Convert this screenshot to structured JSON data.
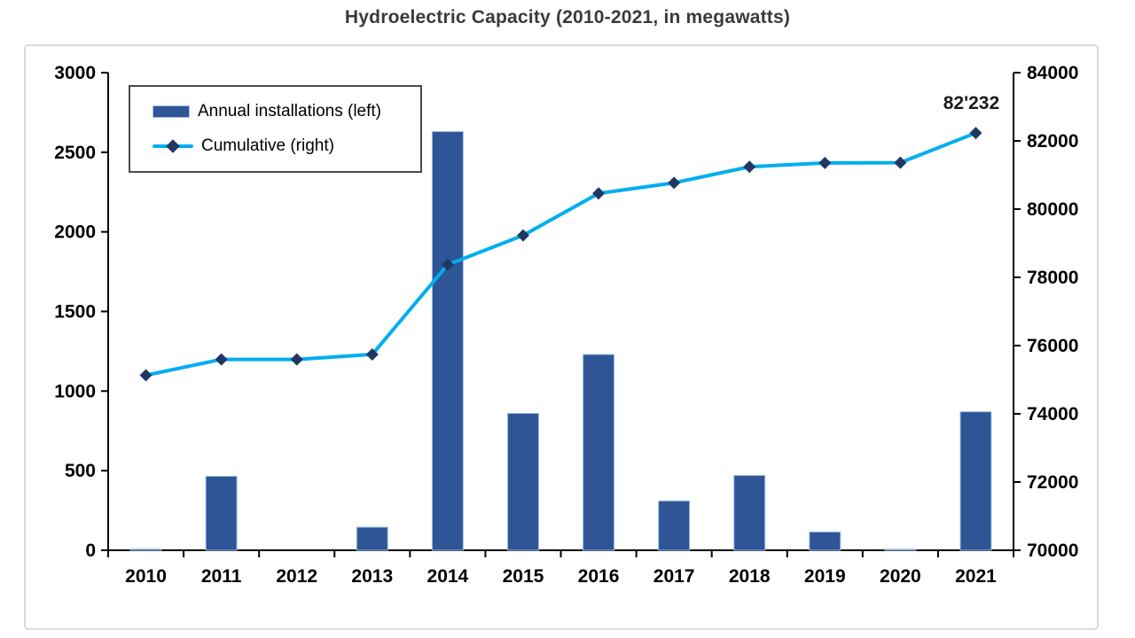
{
  "title": "Hydroelectric Capacity (2010-2021, in megawatts)",
  "legend": {
    "items": [
      {
        "label": "Annual installations (left)",
        "swatch": "bar-swatch"
      },
      {
        "label": "Cumulative (right)",
        "swatch": "line-diamond-swatch"
      }
    ]
  },
  "colors": {
    "bar_fill": "#2F5597",
    "bar_border": "#9DC3E6",
    "line": "#00AEEF",
    "marker": "#1F3864",
    "axis": "#000000",
    "title_text": "#3A3A3A",
    "chart_border": "#DBDBDB",
    "legend_border": "#4A4A4A"
  },
  "chart_data": {
    "type": "combo-bar-line",
    "title": "Hydroelectric Capacity (2010-2021, in megawatts)",
    "categories": [
      "2010",
      "2011",
      "2012",
      "2013",
      "2014",
      "2015",
      "2016",
      "2017",
      "2018",
      "2019",
      "2020",
      "2021"
    ],
    "series": [
      {
        "name": "Annual installations (left)",
        "type": "bar",
        "axis": "left",
        "color": "#2F5597",
        "values": [
          8,
          465,
          0,
          145,
          2630,
          860,
          1230,
          310,
          470,
          115,
          7,
          870
        ]
      },
      {
        "name": "Cumulative (right)",
        "type": "line",
        "axis": "right",
        "color": "#00AEEF",
        "marker": "diamond",
        "marker_color": "#1F3864",
        "values": [
          75130,
          75595,
          75595,
          75740,
          78370,
          79230,
          80460,
          80770,
          81240,
          81355,
          81362,
          82232
        ]
      }
    ],
    "left_axis": {
      "min": 0,
      "max": 3000,
      "step": 500,
      "ticks": [
        0,
        500,
        1000,
        1500,
        2000,
        2500,
        3000
      ]
    },
    "right_axis": {
      "min": 70000,
      "max": 84000,
      "step": 2000,
      "ticks": [
        70000,
        72000,
        74000,
        76000,
        78000,
        80000,
        82000,
        84000
      ]
    },
    "grid": false,
    "legend_position": "top-left-inside",
    "annotation": {
      "text": "82'232",
      "category": "2021",
      "series": "Cumulative (right)"
    }
  }
}
